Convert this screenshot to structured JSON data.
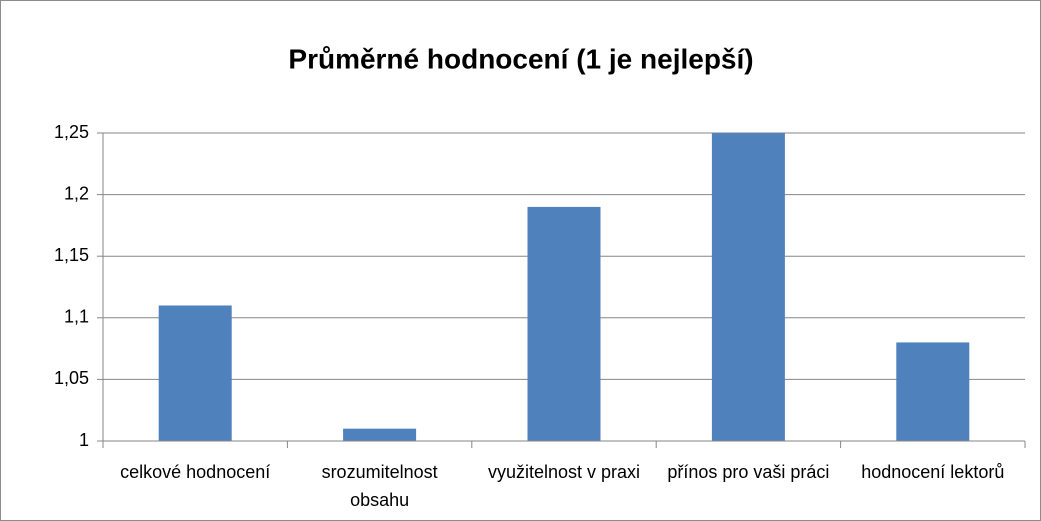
{
  "chart_data": {
    "type": "bar",
    "title": "Průměrné hodnocení (1 je nejlepší)",
    "categories": [
      "celkové hodnocení",
      "srozumitelnost obsahu",
      "využitelnost v praxi",
      "přínos pro vaši práci",
      "hodnocení lektorů"
    ],
    "values": [
      1.11,
      1.01,
      1.19,
      1.25,
      1.08
    ],
    "color": "#4f81bd",
    "ylim": [
      1,
      1.25
    ],
    "yticks": [
      1,
      {
        "value": 1.05,
        "label": "1,05"
      },
      {
        "value": 1.1,
        "label": "1,1"
      },
      {
        "value": 1.15,
        "label": "1,15"
      },
      {
        "value": 1.2,
        "label": "1,2"
      },
      {
        "value": 1.25,
        "label": "1,25"
      }
    ],
    "grid": true
  }
}
